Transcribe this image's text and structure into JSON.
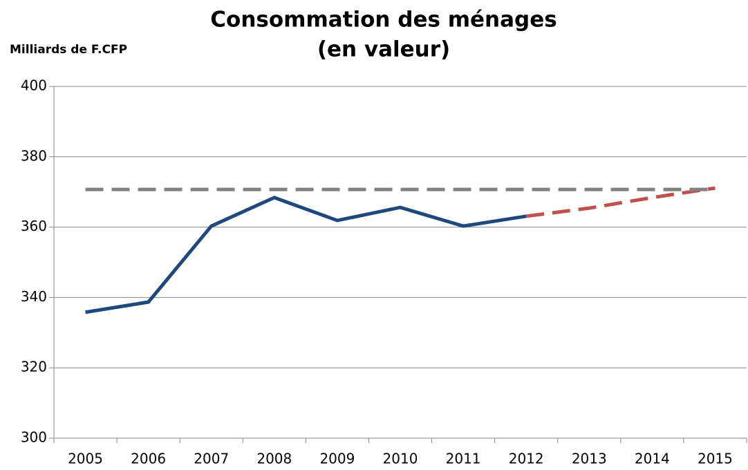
{
  "chart_data": {
    "type": "line",
    "title_lines": [
      "Consommation des ménages",
      "(en valeur)"
    ],
    "y_label": "Milliards de F.CFP",
    "categories": [
      "2005",
      "2006",
      "2007",
      "2008",
      "2009",
      "2010",
      "2011",
      "2012",
      "2013",
      "2014",
      "2015"
    ],
    "series": [
      {
        "color": "#1f497d",
        "dash": false,
        "values": [
          335.8,
          338.7,
          360.3,
          368.4,
          361.9,
          365.6,
          360.3,
          363.1,
          null,
          null,
          null
        ]
      },
      {
        "color": "#c0504d",
        "dash": true,
        "values": [
          null,
          null,
          null,
          null,
          null,
          null,
          null,
          363.1,
          365.4,
          368.4,
          371.1
        ]
      },
      {
        "color": "#808080",
        "dash": true,
        "values": [
          370.7,
          370.7,
          370.7,
          370.7,
          370.7,
          370.7,
          370.7,
          370.7,
          370.7,
          370.7,
          370.7
        ]
      }
    ],
    "ylim": [
      300,
      400
    ],
    "yticks": [
      300,
      320,
      340,
      360,
      380,
      400
    ],
    "grid": true
  }
}
